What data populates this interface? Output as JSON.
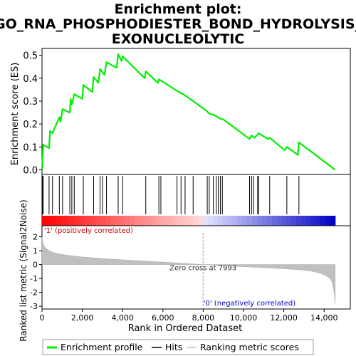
{
  "chart_data": {
    "type": "line",
    "title_lines": [
      "Enrichment plot:",
      "GO_RNA_PHOSPHODIESTER_BOND_HYDROLYSIS_",
      "EXONUCLEOLYTIC"
    ],
    "top_panel": {
      "ylabel": "Enrichment score (ES)",
      "ylim": [
        -0.02,
        0.53
      ],
      "yticks": [
        0.0,
        0.1,
        0.2,
        0.3,
        0.4,
        0.5
      ],
      "ytick_labels": [
        "0.0",
        "0.1",
        "0.2",
        "0.3",
        "0.4",
        "0.5"
      ],
      "series": [
        {
          "name": "Enrichment profile",
          "color": "#00ee00",
          "x": [
            0,
            60,
            350,
            400,
            520,
            860,
            920,
            1020,
            1380,
            1420,
            1480,
            1600,
            2000,
            2050,
            2500,
            2560,
            2800,
            2880,
            3100,
            3200,
            3700,
            3780,
            3950,
            4000,
            5100,
            5150,
            5750,
            5800,
            5900,
            6700,
            6900,
            7100,
            7500,
            8200,
            8300,
            8500,
            8650,
            8800,
            9000,
            10300,
            10400,
            10550,
            10700,
            10750,
            11200,
            11300,
            12050,
            12150,
            12700,
            12750,
            14550
          ],
          "y": [
            0.0,
            0.11,
            0.095,
            0.17,
            0.16,
            0.23,
            0.21,
            0.265,
            0.25,
            0.31,
            0.285,
            0.33,
            0.31,
            0.37,
            0.34,
            0.405,
            0.38,
            0.44,
            0.415,
            0.47,
            0.445,
            0.505,
            0.475,
            0.495,
            0.4,
            0.43,
            0.38,
            0.395,
            0.39,
            0.345,
            0.335,
            0.325,
            0.3,
            0.255,
            0.245,
            0.24,
            0.235,
            0.225,
            0.22,
            0.135,
            0.15,
            0.14,
            0.155,
            0.16,
            0.135,
            0.14,
            0.085,
            0.1,
            0.065,
            0.12,
            0.0
          ]
        }
      ]
    },
    "hits": {
      "positions": [
        20,
        60,
        350,
        520,
        860,
        1020,
        1380,
        1480,
        1600,
        2050,
        2560,
        2880,
        3000,
        3200,
        3780,
        4000,
        5150,
        5800,
        5900,
        6700,
        6900,
        7100,
        7500,
        8200,
        8300,
        8500,
        8650,
        8750,
        8850,
        8950,
        10300,
        10400,
        10500,
        10700,
        10750,
        11300,
        12150,
        12750
      ]
    },
    "ranked_metric": {
      "ylabel": "Ranked list metric (Signal2Noise)",
      "ylim": [
        -3.2,
        2.8
      ],
      "yticks": [
        2,
        1,
        0,
        -1,
        -2,
        -3
      ],
      "ytick_labels": [
        "2",
        "1",
        "0",
        "-1",
        "-2",
        "-3"
      ],
      "fill_color": "#c0c0c0",
      "shape_x": [
        0,
        50,
        150,
        300,
        500,
        800,
        1200,
        2000,
        3000,
        4000,
        5000,
        6000,
        7000,
        7993,
        9000,
        10000,
        11000,
        12000,
        12800,
        13400,
        13800,
        14100,
        14300,
        14400,
        14500,
        14550
      ],
      "shape_y": [
        2.0,
        1.5,
        1.25,
        1.05,
        0.9,
        0.78,
        0.68,
        0.55,
        0.43,
        0.34,
        0.26,
        0.18,
        0.09,
        0.0,
        -0.08,
        -0.15,
        -0.22,
        -0.3,
        -0.38,
        -0.48,
        -0.62,
        -0.8,
        -1.0,
        -1.3,
        -2.0,
        -2.9
      ],
      "zero_cross_label": "Zero cross at 7993",
      "zero_cross": 7993,
      "pos_label": "'1' (positively correlated)",
      "neg_label": "'0' (negatively correlated)"
    },
    "xaxis": {
      "xlabel": "Rank in Ordered Dataset",
      "xlim": [
        0,
        15300
      ],
      "xticks": [
        0,
        2000,
        4000,
        6000,
        8000,
        10000,
        12000,
        14000
      ],
      "xtick_labels": [
        "0",
        "2,000",
        "4,000",
        "6,000",
        "8,000",
        "10,000",
        "12,000",
        "14,000"
      ],
      "n_genes": 14550
    },
    "legend": {
      "items": [
        {
          "label": "Enrichment profile",
          "color": "#00ee00"
        },
        {
          "label": "Hits",
          "color": "#000000"
        },
        {
          "label": "Ranking metric scores",
          "color": "#c0c0c0"
        }
      ]
    }
  }
}
